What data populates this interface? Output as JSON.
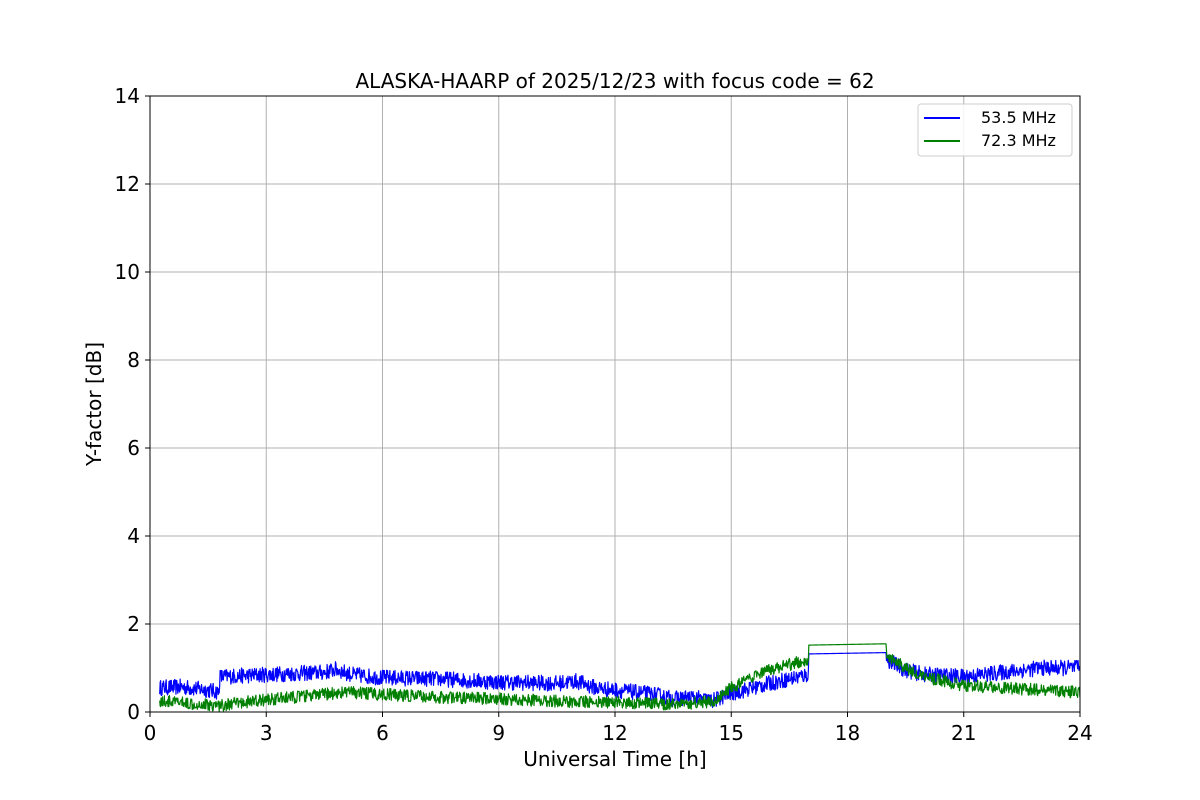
{
  "chart_data": {
    "type": "line",
    "title": "ALASKA-HAARP of 2025/12/23 with focus code = 62",
    "xlabel": "Universal Time [h]",
    "ylabel": "Y-factor [dB]",
    "xlim": [
      0,
      24
    ],
    "ylim": [
      0,
      14
    ],
    "xticks": [
      0,
      3,
      6,
      9,
      12,
      15,
      18,
      21,
      24
    ],
    "yticks": [
      0,
      2,
      4,
      6,
      8,
      10,
      12,
      14
    ],
    "grid": true,
    "legend_position": "top-right",
    "series": [
      {
        "name": "53.5 MHz",
        "color": "#0000ff",
        "band_width": 0.18,
        "x": [
          0.25,
          0.8,
          1.5,
          1.78,
          1.8,
          3,
          4.5,
          4.8,
          5.2,
          6,
          7.5,
          9,
          10.5,
          11,
          11.5,
          12.5,
          13,
          13.5,
          14,
          14.5,
          15,
          16,
          16.99,
          17.0,
          19.0,
          19.01,
          19.5,
          20,
          21,
          22,
          23,
          24
        ],
        "y": [
          0.55,
          0.57,
          0.5,
          0.45,
          0.8,
          0.85,
          0.9,
          0.97,
          0.85,
          0.78,
          0.75,
          0.68,
          0.65,
          0.7,
          0.55,
          0.45,
          0.4,
          0.3,
          0.33,
          0.25,
          0.42,
          0.65,
          0.85,
          1.32,
          1.35,
          1.2,
          0.95,
          0.85,
          0.8,
          0.9,
          1.0,
          1.0
        ]
      },
      {
        "name": "72.3 MHz",
        "color": "#008000",
        "band_width": 0.14,
        "x": [
          0.25,
          1,
          1.8,
          3,
          4.5,
          5,
          6,
          7.5,
          9,
          10.5,
          12,
          13,
          14,
          14.6,
          15,
          16,
          16.99,
          17.0,
          19.0,
          19.01,
          19.5,
          20,
          21,
          22,
          23,
          24
        ],
        "y": [
          0.25,
          0.2,
          0.15,
          0.28,
          0.4,
          0.45,
          0.4,
          0.33,
          0.3,
          0.25,
          0.22,
          0.18,
          0.2,
          0.25,
          0.55,
          0.95,
          1.2,
          1.52,
          1.55,
          1.3,
          1.0,
          0.8,
          0.6,
          0.55,
          0.5,
          0.45
        ]
      }
    ]
  }
}
